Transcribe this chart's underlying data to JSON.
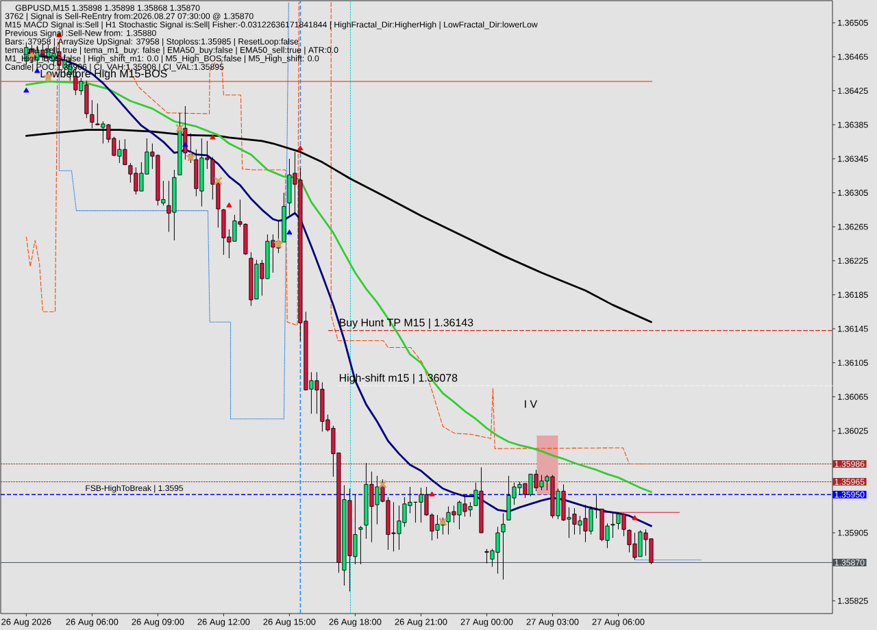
{
  "chart_data": {
    "type": "candlestick",
    "title": "GBPUSD,M15  1.35898 1.35898 1.35868 1.35870",
    "xlim": [
      "2026-08-26T01:50",
      "2026-08-27T15:46"
    ],
    "ylim": [
      1.3581,
      1.36531
    ],
    "xticks": [
      {
        "value": "2026-08-26T03:00",
        "label": "26 Aug 2026"
      },
      {
        "value": "2026-08-26T06:00",
        "label": "26 Aug 06:00"
      },
      {
        "value": "2026-08-26T09:00",
        "label": "26 Aug 09:00"
      },
      {
        "value": "2026-08-26T12:00",
        "label": "26 Aug 12:00"
      },
      {
        "value": "2026-08-26T15:00",
        "label": "26 Aug 15:00"
      },
      {
        "value": "2026-08-26T18:00",
        "label": "26 Aug 18:00"
      },
      {
        "value": "2026-08-26T21:00",
        "label": "26 Aug 21:00"
      },
      {
        "value": "2026-08-27T00:00",
        "label": "27 Aug 00:00"
      },
      {
        "value": "2026-08-27T03:00",
        "label": "27 Aug 03:00"
      },
      {
        "value": "2026-08-27T06:00",
        "label": "27 Aug 06:00"
      }
    ],
    "yticks": [
      1.36505,
      1.36465,
      1.36425,
      1.36385,
      1.36345,
      1.36305,
      1.36265,
      1.36225,
      1.36185,
      1.36145,
      1.36105,
      1.36065,
      1.36025,
      1.35905,
      1.35825
    ],
    "ref_lines": [
      {
        "axis": "y",
        "value": 1.35986,
        "label": "1.35986",
        "color": "#a52a2a",
        "line_style": "dotted"
      },
      {
        "axis": "y",
        "value": 1.35965,
        "label": "1.35965",
        "color": "#a52a2a",
        "line_style": "dotted"
      },
      {
        "axis": "y",
        "value": 1.3595,
        "label": "1.35950",
        "color": "#0000ff",
        "line_style": "dashed"
      },
      {
        "axis": "y",
        "value": 1.3587,
        "label": "1.35870",
        "color": "#4a525a",
        "line_style": "solid"
      },
      {
        "axis": "x",
        "value": "2026-08-26T15:30",
        "color": "#1e90ff",
        "line_style": "dashed"
      },
      {
        "axis": "x",
        "value": "2026-08-26T17:47",
        "color": "#00ced1",
        "line_style": "dotted"
      }
    ],
    "annotations": [
      "3762 | Signal is Sell-ReEntry from:2026.08.27 07:30:00 @ 1.35870",
      "M15 MACD Signal is:Sell | H1 Stochastic Signal is:Sell| Fisher:-0.03122636171841844 | HighFractal_Dir:HigherHigh | LowFractal_Dir:lowerLow",
      "Previous Signal :Sell-New from: 1.35880",
      "Bars: 37958 | ArraySize UpSignal: 37958 | Stoploss:1.35985 | ResetLoop:false",
      "tema_m1_sell: true | tema_m1_buy: false | EMA50_buy:false | EMA50_sell:true | ATR:0.0",
      "M1_High_BOS:false | High_shift_m1: 0.0 | M5_High_BOS:false | M5_High_shift: 0.0",
      "Candle| POC:1.35906 | CI_VAH:1.35908 | CI_VAL:1.35895",
      {
        "text": "Lowbefore High   M15-BOS",
        "x": "2026-08-26T03:37",
        "y": 1.36436
      },
      {
        "text": "Buy Hunt TP M15 | 1.36143",
        "x": "2026-08-26T17:15",
        "y": 1.36143
      },
      {
        "text": "High-shift m15 | 1.36078",
        "x": "2026-08-26T17:15",
        "y": 1.36078
      },
      {
        "text": "FSB-HighToBreak | 1.3595",
        "x": "2026-08-26T05:41",
        "y": 1.3595
      },
      "I V"
    ],
    "series": [
      {
        "type": "line",
        "color": "#e6a4a4",
        "x": [
          "2026-08-27T02:17",
          "2026-08-27T03:15"
        ],
        "values": [
          1.36019,
          1.36019
        ],
        "lower": [
          1.3595,
          1.3595
        ],
        "upper": [
          1.36019,
          1.36019
        ]
      },
      {
        "type": "line",
        "color": "#ff4500",
        "line_style": "dashed",
        "x": [
          "2026-08-26T03:00",
          "2026-08-26T03:11",
          "2026-08-26T03:24",
          "2026-08-26T03:36",
          "2026-08-26T03:45",
          "2026-08-26T04:19",
          "2026-08-26T04:26",
          "2026-08-26T05:00",
          "2026-08-26T07:37",
          "2026-08-26T08:06",
          "2026-08-26T09:26",
          "2026-08-26T11:21",
          "2026-08-26T11:22",
          "2026-08-26T11:36",
          "2026-08-26T11:40",
          "2026-08-26T11:54",
          "2026-08-26T12:00",
          "2026-08-26T12:47",
          "2026-08-26T12:51",
          "2026-08-26T13:19",
          "2026-08-26T14:49",
          "2026-08-26T14:54",
          "2026-08-26T15:22",
          "2026-08-26T15:26",
          "2026-08-26T16:00",
          "2026-08-26T16:54",
          "2026-08-26T16:54",
          "2026-08-26T17:13",
          "2026-08-26T19:17",
          "2026-08-26T19:30",
          "2026-08-26T20:32",
          "2026-08-26T21:04",
          "2026-08-26T21:28",
          "2026-08-26T22:00",
          "2026-08-26T22:32",
          "2026-08-26T23:15",
          "2026-08-27T00:11",
          "2026-08-27T00:17",
          "2026-08-27T00:22",
          "2026-08-27T06:13",
          "2026-08-27T06:30",
          "2026-08-27T07:32"
        ],
        "values": [
          1.36253,
          1.36218,
          1.36249,
          1.36222,
          1.36165,
          1.36165,
          1.36486,
          null,
          1.36455,
          1.3643,
          1.36399,
          1.36398,
          1.36448,
          1.36458,
          null,
          1.36461,
          1.3642,
          1.3642,
          1.36333,
          1.36332,
          1.36332,
          1.36153,
          1.36149,
          1.36529,
          null,
          1.36529,
          1.36161,
          1.36131,
          1.36131,
          1.36123,
          1.36123,
          1.36105,
          1.36075,
          1.3603,
          1.36022,
          1.36021,
          1.36016,
          1.36075,
          1.36004,
          1.36005,
          1.35986,
          1.35986
        ]
      },
      {
        "type": "line",
        "color": "#4a90e2",
        "line_style": "dotted",
        "x": [
          "2026-08-26T04:30",
          "2026-08-26T04:30",
          "2026-08-26T05:04",
          "2026-08-26T05:17",
          "2026-08-26T11:17",
          "2026-08-26T11:22",
          "2026-08-26T12:19",
          "2026-08-26T12:19",
          "2026-08-26T14:45",
          "2026-08-26T14:58"
        ],
        "values": [
          1.36448,
          1.36331,
          1.36331,
          1.36284,
          1.36284,
          1.36153,
          1.36153,
          1.36039,
          1.36039,
          1.36529
        ]
      },
      {
        "type": "line",
        "color": "#ff4500",
        "x": [
          "2026-08-26T01:50",
          "2026-08-27T07:32"
        ],
        "values": [
          1.36436,
          1.36436
        ]
      },
      {
        "type": "line",
        "color": "#e0201c",
        "line_style": "dashed",
        "x": [
          "2026-08-26T16:47",
          "2026-08-27T15:46"
        ],
        "values": [
          1.36143,
          1.36143
        ]
      },
      {
        "type": "line",
        "color": "#f6f6f6",
        "line_style": "dashed",
        "x": [
          "2026-08-26T17:13",
          "2026-08-27T15:46"
        ],
        "values": [
          1.36078,
          1.36078
        ]
      },
      {
        "type": "line",
        "color": "#dc143c",
        "x": [
          "2026-08-27T05:11",
          "2026-08-27T08:47"
        ],
        "values": [
          1.35929,
          1.35929
        ]
      },
      {
        "type": "line",
        "color": "#6495ed",
        "x": [
          "2026-08-27T06:49",
          "2026-08-27T09:47"
        ],
        "values": [
          1.35873,
          1.35873
        ]
      },
      {
        "type": "line",
        "color": "#000000",
        "x": [
          "2026-08-26T03:00",
          "2026-08-26T04:30",
          "2026-08-26T05:45",
          "2026-08-26T07:15",
          "2026-08-26T08:45",
          "2026-08-26T10:15",
          "2026-08-26T11:45",
          "2026-08-26T12:15",
          "2026-08-26T13:45",
          "2026-08-26T14:15",
          "2026-08-26T15:15",
          "2026-08-26T15:30",
          "2026-08-26T16:30",
          "2026-08-26T17:45",
          "2026-08-26T19:15",
          "2026-08-26T21:00",
          "2026-08-26T23:00",
          "2026-08-27T00:45",
          "2026-08-27T02:30",
          "2026-08-27T04:30",
          "2026-08-27T05:45",
          "2026-08-27T07:30"
        ],
        "values": [
          1.36372,
          1.36376,
          1.36379,
          1.36379,
          1.36377,
          1.36373,
          1.36372,
          1.3637,
          1.36366,
          1.36363,
          1.36355,
          1.36353,
          1.36341,
          1.36322,
          1.36302,
          1.36278,
          1.36253,
          1.36231,
          1.36211,
          1.3619,
          1.36173,
          1.36153
        ]
      },
      {
        "type": "line",
        "color": "#32cd32",
        "x": [
          "2026-08-26T03:00",
          "2026-08-26T04:00",
          "2026-08-26T05:45",
          "2026-08-26T06:45",
          "2026-08-26T07:45",
          "2026-08-26T08:45",
          "2026-08-26T09:45",
          "2026-08-26T10:45",
          "2026-08-26T11:45",
          "2026-08-26T12:15",
          "2026-08-26T13:15",
          "2026-08-26T14:00",
          "2026-08-26T14:45",
          "2026-08-26T15:15",
          "2026-08-26T15:30",
          "2026-08-26T16:00",
          "2026-08-26T16:30",
          "2026-08-26T17:00",
          "2026-08-26T17:30",
          "2026-08-26T18:00",
          "2026-08-26T18:30",
          "2026-08-26T19:00",
          "2026-08-26T19:30",
          "2026-08-26T20:00",
          "2026-08-26T20:30",
          "2026-08-26T21:00",
          "2026-08-26T21:30",
          "2026-08-26T22:00",
          "2026-08-26T22:30",
          "2026-08-26T23:00",
          "2026-08-26T23:30",
          "2026-08-27T00:00",
          "2026-08-27T00:30",
          "2026-08-27T01:00",
          "2026-08-27T01:30",
          "2026-08-27T02:00",
          "2026-08-27T02:30",
          "2026-08-27T03:00",
          "2026-08-27T03:30",
          "2026-08-27T04:00",
          "2026-08-27T04:30",
          "2026-08-27T05:00",
          "2026-08-27T05:30",
          "2026-08-27T06:00",
          "2026-08-27T06:30",
          "2026-08-27T07:00",
          "2026-08-27T07:30"
        ],
        "values": [
          1.36432,
          1.36436,
          1.36434,
          1.36427,
          1.36413,
          1.36404,
          1.36389,
          1.36383,
          1.36373,
          1.36363,
          1.3635,
          1.36332,
          1.36324,
          1.36323,
          1.3632,
          1.36294,
          1.36276,
          1.36258,
          1.36234,
          1.36211,
          1.36192,
          1.36176,
          1.36157,
          1.36137,
          1.36115,
          1.36105,
          1.36085,
          1.36069,
          1.36059,
          1.36048,
          1.36039,
          1.36028,
          1.36019,
          1.36012,
          1.36008,
          1.36005,
          1.36001,
          1.35996,
          1.35992,
          1.35987,
          1.35983,
          1.35979,
          1.35974,
          1.3597,
          1.35964,
          1.35958,
          1.35953
        ]
      },
      {
        "type": "line",
        "color": "#000080",
        "x": [
          "2026-08-26T03:00",
          "2026-08-26T03:30",
          "2026-08-26T04:30",
          "2026-08-26T05:15",
          "2026-08-26T06:00",
          "2026-08-26T06:30",
          "2026-08-26T07:00",
          "2026-08-26T07:45",
          "2026-08-26T08:15",
          "2026-08-26T08:45",
          "2026-08-26T09:15",
          "2026-08-26T09:45",
          "2026-08-26T10:00",
          "2026-08-26T10:15",
          "2026-08-26T10:45",
          "2026-08-26T11:15",
          "2026-08-26T11:45",
          "2026-08-26T12:15",
          "2026-08-26T12:45",
          "2026-08-26T13:15",
          "2026-08-26T13:45",
          "2026-08-26T14:15",
          "2026-08-26T14:30",
          "2026-08-26T14:45",
          "2026-08-26T15:15",
          "2026-08-26T15:30",
          "2026-08-26T16:00",
          "2026-08-26T16:30",
          "2026-08-26T17:00",
          "2026-08-26T17:30",
          "2026-08-26T18:00",
          "2026-08-26T18:30",
          "2026-08-26T19:00",
          "2026-08-26T19:30",
          "2026-08-26T20:00",
          "2026-08-26T20:30",
          "2026-08-26T21:00",
          "2026-08-26T21:30",
          "2026-08-26T22:00",
          "2026-08-26T22:30",
          "2026-08-26T23:00",
          "2026-08-26T23:30",
          "2026-08-27T00:00",
          "2026-08-27T00:30",
          "2026-08-27T01:00",
          "2026-08-27T01:30",
          "2026-08-27T02:00",
          "2026-08-27T02:30",
          "2026-08-27T03:00",
          "2026-08-27T03:30",
          "2026-08-27T04:00",
          "2026-08-27T04:30",
          "2026-08-27T05:00",
          "2026-08-27T05:30",
          "2026-08-27T06:00",
          "2026-08-27T06:30",
          "2026-08-27T07:00",
          "2026-08-27T07:30"
        ],
        "values": [
          1.3647,
          1.36466,
          1.36463,
          1.36456,
          1.36445,
          1.36434,
          1.3642,
          1.36398,
          1.36384,
          1.36375,
          1.36365,
          1.36352,
          1.36353,
          1.36356,
          1.3635,
          1.36349,
          1.36339,
          1.36324,
          1.36314,
          1.36298,
          1.36285,
          1.36274,
          1.36272,
          1.36273,
          1.36281,
          1.36274,
          1.36242,
          1.36208,
          1.36173,
          1.36132,
          1.36084,
          1.36056,
          1.36036,
          1.36013,
          1.35998,
          1.35985,
          1.35978,
          1.35967,
          1.35957,
          1.35952,
          1.35948,
          1.35948,
          1.3594,
          1.35932,
          1.3593,
          1.35935,
          1.35939,
          1.35943,
          1.35946,
          1.35944,
          1.3594,
          1.35936,
          1.35933,
          1.3593,
          1.35928,
          1.35925,
          1.35919,
          1.35913
        ]
      },
      {
        "type": "scatter",
        "marker": "triangle",
        "color": "#ff0000",
        "x": [
          "2026-08-26T04:30",
          "2026-08-26T11:30",
          "2026-08-26T12:15",
          "2026-08-26T15:30",
          "2026-08-26T21:30",
          "2026-08-27T06:45"
        ],
        "values": [
          1.3649,
          1.3637,
          1.3629,
          1.36357,
          1.3595,
          1.35922
        ]
      },
      {
        "type": "scatter",
        "marker": "triangle",
        "color": "#0000ff",
        "x": [
          "2026-08-26T03:00",
          "2026-08-26T03:30",
          "2026-08-26T10:15",
          "2026-08-26T15:00"
        ],
        "values": [
          1.36425,
          1.36448,
          1.36361,
          1.36258
        ]
      },
      {
        "type": "scatter",
        "marker": "star",
        "color": "#daa060",
        "x": [
          "2026-08-26T03:15",
          "2026-08-26T04:00",
          "2026-08-26T10:30",
          "2026-08-26T14:30"
        ],
        "values": [
          1.36466,
          1.36441,
          1.36347,
          1.36245
        ]
      },
      {
        "type": "scatter",
        "marker": "cross",
        "color": "#daa060",
        "x": [
          "2026-08-26T10:00",
          "2026-08-26T11:45",
          "2026-08-26T19:15",
          "2026-08-26T22:00"
        ],
        "values": [
          1.36381,
          1.36319,
          1.35962,
          1.35918
        ]
      },
      {
        "x": [
          "2026-08-26T03:00",
          "2026-08-26T03:15",
          "2026-08-26T03:30",
          "2026-08-26T03:45",
          "2026-08-26T04:00",
          "2026-08-26T04:15",
          "2026-08-26T04:30",
          "2026-08-26T04:45",
          "2026-08-26T05:00",
          "2026-08-26T05:15",
          "2026-08-26T05:30",
          "2026-08-26T05:45",
          "2026-08-26T06:00",
          "2026-08-26T06:15",
          "2026-08-26T06:30",
          "2026-08-26T06:45",
          "2026-08-26T07:00",
          "2026-08-26T07:15",
          "2026-08-26T07:30",
          "2026-08-26T07:45",
          "2026-08-26T08:00",
          "2026-08-26T08:15",
          "2026-08-26T08:30",
          "2026-08-26T08:45",
          "2026-08-26T09:00",
          "2026-08-26T09:15",
          "2026-08-26T09:30",
          "2026-08-26T09:45",
          "2026-08-26T10:00",
          "2026-08-26T10:15",
          "2026-08-26T10:30",
          "2026-08-26T10:45",
          "2026-08-26T11:00",
          "2026-08-26T11:15",
          "2026-08-26T11:30",
          "2026-08-26T11:45",
          "2026-08-26T12:00",
          "2026-08-26T12:15",
          "2026-08-26T12:30",
          "2026-08-26T12:45",
          "2026-08-26T13:00",
          "2026-08-26T13:15",
          "2026-08-26T13:30",
          "2026-08-26T13:45",
          "2026-08-26T14:00",
          "2026-08-26T14:15",
          "2026-08-26T14:30",
          "2026-08-26T14:45",
          "2026-08-26T15:00",
          "2026-08-26T15:15",
          "2026-08-26T15:30",
          "2026-08-26T15:45",
          "2026-08-26T16:00",
          "2026-08-26T16:15",
          "2026-08-26T16:30",
          "2026-08-26T16:45",
          "2026-08-26T17:00",
          "2026-08-26T17:15",
          "2026-08-26T17:30",
          "2026-08-26T17:45",
          "2026-08-26T18:00",
          "2026-08-26T18:15",
          "2026-08-26T18:30",
          "2026-08-26T18:45",
          "2026-08-26T19:00",
          "2026-08-26T19:15",
          "2026-08-26T19:30",
          "2026-08-26T19:45",
          "2026-08-26T20:00",
          "2026-08-26T20:15",
          "2026-08-26T20:30",
          "2026-08-26T20:45",
          "2026-08-26T21:00",
          "2026-08-26T21:15",
          "2026-08-26T21:30",
          "2026-08-26T21:45",
          "2026-08-26T22:00",
          "2026-08-26T22:15",
          "2026-08-26T22:30",
          "2026-08-26T22:45",
          "2026-08-26T23:00",
          "2026-08-26T23:15",
          "2026-08-26T23:30",
          "2026-08-26T23:45",
          "2026-08-27T00:00",
          "2026-08-27T00:15",
          "2026-08-27T00:30",
          "2026-08-27T00:45",
          "2026-08-27T01:00",
          "2026-08-27T01:15",
          "2026-08-27T01:30",
          "2026-08-27T01:45",
          "2026-08-27T02:00",
          "2026-08-27T02:15",
          "2026-08-27T02:30",
          "2026-08-27T02:45",
          "2026-08-27T03:00",
          "2026-08-27T03:15",
          "2026-08-27T03:30",
          "2026-08-27T03:45",
          "2026-08-27T04:00",
          "2026-08-27T04:15",
          "2026-08-27T04:30",
          "2026-08-27T04:45",
          "2026-08-27T05:00",
          "2026-08-27T05:15",
          "2026-08-27T05:30",
          "2026-08-27T05:45",
          "2026-08-27T06:00",
          "2026-08-27T06:15",
          "2026-08-27T06:30",
          "2026-08-27T06:45",
          "2026-08-27T07:00",
          "2026-08-27T07:15",
          "2026-08-27T07:30"
        ],
        "ohlc": [
          [
            1.3646,
            1.36482,
            1.36456,
            1.36476
          ],
          [
            1.36474,
            1.36479,
            1.36458,
            1.36464
          ],
          [
            1.36461,
            1.36478,
            1.36455,
            1.36473
          ],
          [
            1.36473,
            1.36481,
            1.3646,
            1.36466
          ],
          [
            1.36465,
            1.36479,
            1.36458,
            1.36474
          ],
          [
            1.3646,
            1.36476,
            1.36452,
            1.36469
          ],
          [
            1.36471,
            1.36482,
            1.36448,
            1.36455
          ],
          [
            1.36452,
            1.36468,
            1.36442,
            1.36461
          ],
          [
            1.36444,
            1.36464,
            1.36437,
            1.36456
          ],
          [
            1.36442,
            1.36452,
            1.3642,
            1.36426
          ],
          [
            1.36425,
            1.3644,
            1.3642,
            1.36436
          ],
          [
            1.36432,
            1.36437,
            1.36393,
            1.36398
          ],
          [
            1.36397,
            1.36414,
            1.36381,
            1.36388
          ],
          [
            1.36386,
            1.3641,
            1.36385,
            1.36385
          ],
          [
            1.36382,
            1.36389,
            1.36363,
            1.36386
          ],
          [
            1.36385,
            1.36386,
            1.36364,
            1.36368
          ],
          [
            1.36369,
            1.36371,
            1.36348,
            1.36349
          ],
          [
            1.36348,
            1.36367,
            1.3634,
            1.36356
          ],
          [
            1.36356,
            1.36368,
            1.36338,
            1.36338
          ],
          [
            1.36337,
            1.3634,
            1.36317,
            1.36327
          ],
          [
            1.36328,
            1.36335,
            1.36303,
            1.36307
          ],
          [
            1.36307,
            1.36341,
            1.36307,
            1.36328
          ],
          [
            1.36327,
            1.36369,
            1.36327,
            1.36353
          ],
          [
            1.36353,
            1.36363,
            1.36333,
            1.36348
          ],
          [
            1.36349,
            1.3635,
            1.3629,
            1.36296
          ],
          [
            1.36293,
            1.36319,
            1.3629,
            1.36297
          ],
          [
            1.3629,
            1.36319,
            1.36259,
            1.36281
          ],
          [
            1.36282,
            1.36332,
            1.36249,
            1.36323
          ],
          [
            1.36326,
            1.36399,
            1.36326,
            1.36381
          ],
          [
            1.36381,
            1.36407,
            1.36344,
            1.36352
          ],
          [
            1.3635,
            1.36375,
            1.3634,
            1.36348
          ],
          [
            1.36344,
            1.36356,
            1.36301,
            1.3631
          ],
          [
            1.36307,
            1.36369,
            1.36289,
            1.36346
          ],
          [
            1.36346,
            1.36366,
            1.36333,
            1.36344
          ],
          [
            1.36344,
            1.36347,
            1.36297,
            1.36315
          ],
          [
            1.36316,
            1.36319,
            1.36264,
            1.36286
          ],
          [
            1.36285,
            1.36286,
            1.36232,
            1.36252
          ],
          [
            1.36253,
            1.36262,
            1.36228,
            1.36247
          ],
          [
            1.36248,
            1.36279,
            1.36248,
            1.36272
          ],
          [
            1.36271,
            1.36297,
            1.36265,
            1.36268
          ],
          [
            1.36268,
            1.36269,
            1.36232,
            1.36233
          ],
          [
            1.36228,
            1.36235,
            1.36172,
            1.36179
          ],
          [
            1.3618,
            1.36226,
            1.3618,
            1.36221
          ],
          [
            1.36222,
            1.36226,
            1.36184,
            1.36204
          ],
          [
            1.36204,
            1.36256,
            1.36204,
            1.36248
          ],
          [
            1.36249,
            1.36256,
            1.36211,
            1.36241
          ],
          [
            1.3624,
            1.36271,
            1.36234,
            1.36248
          ],
          [
            1.36247,
            1.36305,
            1.36247,
            1.36289
          ],
          [
            1.36293,
            1.36345,
            1.36279,
            1.36326
          ],
          [
            1.36328,
            1.36353,
            1.3628,
            1.36315
          ],
          [
            1.3632,
            1.36334,
            1.36131,
            1.36152
          ],
          [
            1.36154,
            1.36165,
            1.36073,
            1.36073
          ],
          [
            1.36074,
            1.36094,
            1.36045,
            1.36084
          ],
          [
            1.36084,
            1.36094,
            1.36045,
            1.36073
          ],
          [
            1.36074,
            1.36082,
            1.36024,
            1.36036
          ],
          [
            1.36038,
            1.36044,
            1.36024,
            1.36026
          ],
          [
            1.36028,
            1.36031,
            1.35971,
            1.35998
          ],
          [
            1.35999,
            1.35999,
            1.35858,
            1.3587
          ],
          [
            1.35861,
            1.35961,
            1.35843,
            1.35944
          ],
          [
            1.35943,
            1.35957,
            1.35836,
            1.35878
          ],
          [
            1.35877,
            1.3595,
            1.35868,
            1.35903
          ],
          [
            1.35909,
            1.35913,
            1.35868,
            1.35911
          ],
          [
            1.35914,
            1.35987,
            1.35898,
            1.35962
          ],
          [
            1.35962,
            1.35977,
            1.35894,
            1.35936
          ],
          [
            1.35938,
            1.35972,
            1.35915,
            1.35959
          ],
          [
            1.35961,
            1.35968,
            1.35941,
            1.35942
          ],
          [
            1.35943,
            1.35947,
            1.35885,
            1.35903
          ],
          [
            1.35905,
            1.35941,
            1.35883,
            1.35904
          ],
          [
            1.35904,
            1.35937,
            1.35885,
            1.35919
          ],
          [
            1.35917,
            1.35947,
            1.35912,
            1.35939
          ],
          [
            1.35937,
            1.35959,
            1.35928,
            1.35941
          ],
          [
            1.35941,
            1.35941,
            1.35917,
            1.35941
          ],
          [
            1.35941,
            1.35958,
            1.35917,
            1.3595
          ],
          [
            1.3595,
            1.35959,
            1.35925,
            1.35926
          ],
          [
            1.35926,
            1.35928,
            1.35896,
            1.35907
          ],
          [
            1.35908,
            1.35926,
            1.35898,
            1.35915
          ],
          [
            1.35914,
            1.35923,
            1.35903,
            1.35919
          ],
          [
            1.35918,
            1.35936,
            1.35903,
            1.35929
          ],
          [
            1.3593,
            1.35937,
            1.35917,
            1.35926
          ],
          [
            1.35926,
            1.35943,
            1.35909,
            1.35941
          ],
          [
            1.35939,
            1.35947,
            1.35924,
            1.3593
          ],
          [
            1.35932,
            1.35941,
            1.35924,
            1.35936
          ],
          [
            1.35937,
            1.35964,
            1.35937,
            1.35955
          ],
          [
            1.35954,
            1.35982,
            1.35905,
            1.35905
          ],
          [
            1.35883,
            1.35886,
            1.35869,
            1.35882
          ],
          [
            1.35874,
            1.35886,
            1.35865,
            1.35884
          ],
          [
            1.35882,
            1.35912,
            1.35857,
            1.35905
          ],
          [
            1.35906,
            1.35928,
            1.3585,
            1.35915
          ],
          [
            1.3592,
            1.35972,
            1.3592,
            1.35949
          ],
          [
            1.35946,
            1.35964,
            1.35938,
            1.35959
          ],
          [
            1.35958,
            1.35965,
            1.3595,
            1.35962
          ],
          [
            1.35963,
            1.35963,
            1.35946,
            1.3595
          ],
          [
            1.3595,
            1.35974,
            1.35948,
            1.35974
          ],
          [
            1.35974,
            1.35979,
            1.35954,
            1.35958
          ],
          [
            1.35959,
            1.35973,
            1.35955,
            1.35966
          ],
          [
            1.35966,
            1.35973,
            1.35955,
            1.35971
          ],
          [
            1.35971,
            1.35973,
            1.35922,
            1.35925
          ],
          [
            1.35925,
            1.35957,
            1.35921,
            1.35954
          ],
          [
            1.35954,
            1.35962,
            1.35919,
            1.3592
          ],
          [
            1.35921,
            1.35935,
            1.35899,
            1.35923
          ],
          [
            1.35927,
            1.35934,
            1.35903,
            1.35915
          ],
          [
            1.35914,
            1.35925,
            1.35903,
            1.35919
          ],
          [
            1.35922,
            1.35938,
            1.35894,
            1.35907
          ],
          [
            1.35907,
            1.35936,
            1.35903,
            1.35933
          ],
          [
            1.35933,
            1.35949,
            1.35922,
            1.35932
          ],
          [
            1.35933,
            1.35933,
            1.35895,
            1.35897
          ],
          [
            1.35896,
            1.35916,
            1.35887,
            1.35913
          ],
          [
            1.35914,
            1.35929,
            1.35899,
            1.35915
          ],
          [
            1.35916,
            1.35929,
            1.35909,
            1.35927
          ],
          [
            1.35927,
            1.35928,
            1.35901,
            1.35909
          ],
          [
            1.35908,
            1.35909,
            1.35882,
            1.35891
          ],
          [
            1.35892,
            1.35905,
            1.35873,
            1.35876
          ],
          [
            1.35877,
            1.35908,
            1.35877,
            1.35906
          ],
          [
            1.35905,
            1.35909,
            1.35878,
            1.35897
          ],
          [
            1.35898,
            1.35898,
            1.35868,
            1.3587
          ]
        ],
        "colors": [
          "#00e676",
          "#dc143c",
          "#00e676",
          "#dc143c",
          "#00e676",
          "#00e676",
          "#dc143c",
          "#00e676",
          "#00e676",
          "#dc143c",
          "#00e676",
          "#dc143c",
          "#dc143c",
          "#dc143c",
          "#00e676",
          "#dc143c",
          "#dc143c",
          "#00e676",
          "#dc143c",
          "#dc143c",
          "#dc143c",
          "#00e676",
          "#00e676",
          "#dc143c",
          "#dc143c",
          "#00e676",
          "#dc143c",
          "#00e676",
          "#00e676",
          "#dc143c",
          "#dc143c",
          "#dc143c",
          "#00e676",
          "#dc143c",
          "#dc143c",
          "#dc143c",
          "#dc143c",
          "#dc143c",
          "#00e676",
          "#dc143c",
          "#dc143c",
          "#dc143c",
          "#00e676",
          "#dc143c",
          "#00e676",
          "#dc143c",
          "#00e676",
          "#00e676",
          "#00e676",
          "#dc143c",
          "#dc143c",
          "#dc143c",
          "#00e676",
          "#dc143c",
          "#dc143c",
          "#dc143c",
          "#dc143c",
          "#dc143c",
          "#00e676",
          "#dc143c",
          "#00e676",
          "#00e676",
          "#00e676",
          "#dc143c",
          "#00e676",
          "#dc143c",
          "#dc143c",
          "#dc143c",
          "#00e676",
          "#00e676",
          "#00e676",
          "#000000",
          "#00e676",
          "#dc143c",
          "#dc143c",
          "#00e676",
          "#00e676",
          "#00e676",
          "#dc143c",
          "#00e676",
          "#dc143c",
          "#00e676",
          "#00e676",
          "#dc143c",
          "#dc143c",
          "#00e676",
          "#00e676",
          "#00e676",
          "#00e676",
          "#00e676",
          "#00e676",
          "#dc143c",
          "#00e676",
          "#dc143c",
          "#00e676",
          "#00e676",
          "#dc143c",
          "#00e676",
          "#dc143c",
          "#00e676",
          "#dc143c",
          "#00e676",
          "#dc143c",
          "#00e676",
          "#dc143c",
          "#dc143c",
          "#00e676",
          "#00e676",
          "#00e676",
          "#dc143c",
          "#dc143c",
          "#dc143c",
          "#00e676",
          "#dc143c",
          "#dc143c"
        ]
      }
    ]
  }
}
